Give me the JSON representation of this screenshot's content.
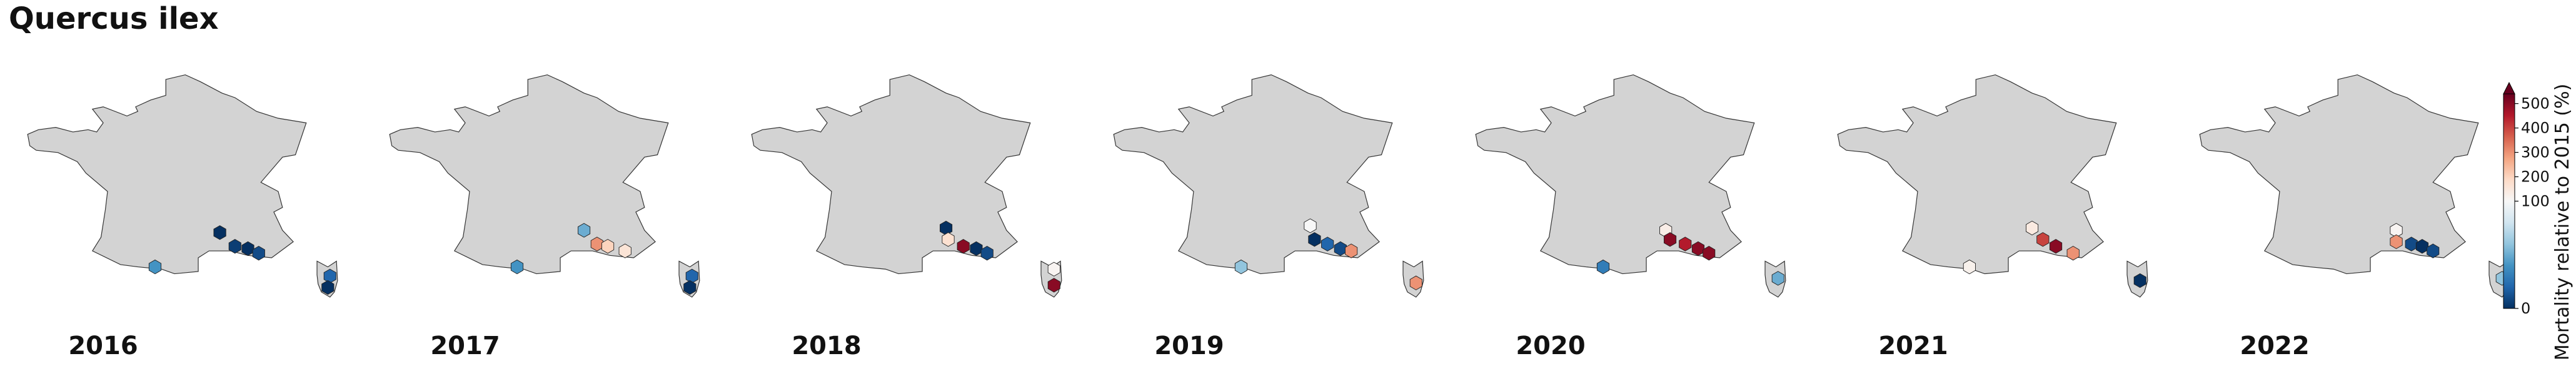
{
  "title": "Quercus ilex",
  "colors": {
    "land": "#d3d3d3",
    "coast": "#333333",
    "cmap": [
      "#053061",
      "#2166ac",
      "#4393c3",
      "#92c5de",
      "#d1e5f0",
      "#f7f7f7",
      "#fddbc7",
      "#f4a582",
      "#d6604d",
      "#b2182b",
      "#67001f"
    ]
  },
  "panels": [
    {
      "year": "2016",
      "cells": [
        {
          "lon": 4.1,
          "lat": 44.2,
          "value": 0
        },
        {
          "lon": 4.8,
          "lat": 43.6,
          "value": 5
        },
        {
          "lon": 5.4,
          "lat": 43.5,
          "value": 0
        },
        {
          "lon": 5.9,
          "lat": 43.3,
          "value": 10
        },
        {
          "lon": 1.1,
          "lat": 42.7,
          "value": 40
        },
        {
          "lon": 9.2,
          "lat": 42.3,
          "value": 20
        },
        {
          "lon": 9.1,
          "lat": 41.8,
          "value": 0
        }
      ]
    },
    {
      "year": "2017",
      "cells": [
        {
          "lon": 4.2,
          "lat": 44.3,
          "value": 50
        },
        {
          "lon": 4.8,
          "lat": 43.7,
          "value": 300
        },
        {
          "lon": 5.3,
          "lat": 43.6,
          "value": 200
        },
        {
          "lon": 6.1,
          "lat": 43.4,
          "value": 160
        },
        {
          "lon": 1.1,
          "lat": 42.7,
          "value": 40
        },
        {
          "lon": 9.2,
          "lat": 42.3,
          "value": 20
        },
        {
          "lon": 9.1,
          "lat": 41.8,
          "value": 0
        }
      ]
    },
    {
      "year": "2018",
      "cells": [
        {
          "lon": 4.2,
          "lat": 44.4,
          "value": 0
        },
        {
          "lon": 4.3,
          "lat": 43.9,
          "value": 170
        },
        {
          "lon": 5.0,
          "lat": 43.6,
          "value": 500
        },
        {
          "lon": 5.6,
          "lat": 43.5,
          "value": 0
        },
        {
          "lon": 6.1,
          "lat": 43.3,
          "value": 10
        },
        {
          "lon": 9.2,
          "lat": 42.6,
          "value": 110
        },
        {
          "lon": 9.2,
          "lat": 41.9,
          "value": 500
        }
      ]
    },
    {
      "year": "2019",
      "cells": [
        {
          "lon": 4.3,
          "lat": 44.5,
          "value": 100
        },
        {
          "lon": 4.5,
          "lat": 43.9,
          "value": 0
        },
        {
          "lon": 5.1,
          "lat": 43.7,
          "value": 20
        },
        {
          "lon": 5.7,
          "lat": 43.5,
          "value": 10
        },
        {
          "lon": 6.2,
          "lat": 43.4,
          "value": 300
        },
        {
          "lon": 1.1,
          "lat": 42.7,
          "value": 60
        },
        {
          "lon": 9.2,
          "lat": 42.0,
          "value": 300
        }
      ]
    },
    {
      "year": "2020",
      "cells": [
        {
          "lon": 4.0,
          "lat": 44.3,
          "value": 130
        },
        {
          "lon": 4.2,
          "lat": 43.9,
          "value": 500
        },
        {
          "lon": 4.9,
          "lat": 43.7,
          "value": 450
        },
        {
          "lon": 5.5,
          "lat": 43.5,
          "value": 500
        },
        {
          "lon": 6.0,
          "lat": 43.3,
          "value": 500
        },
        {
          "lon": 1.1,
          "lat": 42.7,
          "value": 30
        },
        {
          "lon": 9.2,
          "lat": 42.2,
          "value": 50
        }
      ]
    },
    {
      "year": "2021",
      "cells": [
        {
          "lon": 4.2,
          "lat": 44.4,
          "value": 140
        },
        {
          "lon": 4.7,
          "lat": 43.9,
          "value": 400
        },
        {
          "lon": 5.3,
          "lat": 43.6,
          "value": 500
        },
        {
          "lon": 6.1,
          "lat": 43.3,
          "value": 300
        },
        {
          "lon": 1.3,
          "lat": 42.7,
          "value": 120
        },
        {
          "lon": 9.2,
          "lat": 42.1,
          "value": 0
        }
      ]
    },
    {
      "year": "2022",
      "cells": [
        {
          "lon": 4.3,
          "lat": 44.3,
          "value": 110
        },
        {
          "lon": 4.3,
          "lat": 43.8,
          "value": 300
        },
        {
          "lon": 5.0,
          "lat": 43.7,
          "value": 10
        },
        {
          "lon": 5.5,
          "lat": 43.6,
          "value": 0
        },
        {
          "lon": 6.0,
          "lat": 43.4,
          "value": 10
        },
        {
          "lon": 9.2,
          "lat": 42.2,
          "value": 60
        }
      ]
    }
  ],
  "colorbar": {
    "label": "Mortality relative to 2015 (%)",
    "ticks": [
      0,
      100,
      200,
      300,
      400,
      500
    ],
    "vmin": 0,
    "vcenter": 100,
    "vmax": 540,
    "extend": "max"
  }
}
